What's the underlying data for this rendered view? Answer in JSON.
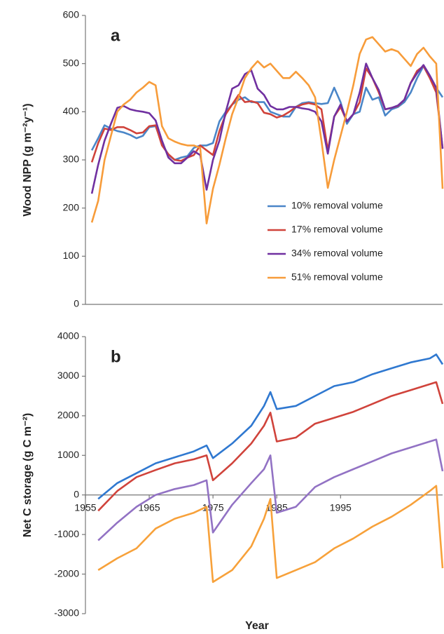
{
  "chart_data": [
    {
      "type": "line",
      "panel_label": "a",
      "ylabel": "Wood NPP (g m⁻²y⁻¹)",
      "xlim": [
        1955,
        2011
      ],
      "ylim": [
        0,
        600
      ],
      "yticks": [
        0,
        100,
        200,
        300,
        400,
        500,
        600
      ],
      "legend": "lower right",
      "x": [
        1956,
        1957,
        1958,
        1959,
        1960,
        1961,
        1962,
        1963,
        1964,
        1965,
        1966,
        1967,
        1968,
        1969,
        1970,
        1971,
        1972,
        1973,
        1974,
        1975,
        1976,
        1977,
        1978,
        1979,
        1980,
        1981,
        1982,
        1983,
        1984,
        1985,
        1986,
        1987,
        1988,
        1989,
        1990,
        1991,
        1992,
        1993,
        1994,
        1995,
        1996,
        1997,
        1998,
        1999,
        2000,
        2001,
        2002,
        2003,
        2004,
        2005,
        2006,
        2007,
        2008,
        2009,
        2010,
        2011
      ],
      "series": [
        {
          "name": "10% removal volume",
          "color": "#4a86c8",
          "values": [
            320,
            345,
            372,
            365,
            360,
            357,
            352,
            345,
            350,
            368,
            370,
            335,
            310,
            300,
            305,
            308,
            325,
            330,
            330,
            335,
            380,
            400,
            415,
            425,
            430,
            420,
            420,
            420,
            400,
            395,
            390,
            390,
            410,
            418,
            420,
            418,
            416,
            418,
            450,
            420,
            375,
            395,
            400,
            450,
            425,
            430,
            392,
            405,
            410,
            420,
            440,
            470,
            495,
            470,
            450,
            430
          ]
        },
        {
          "name": "17% removal volume",
          "color": "#d0433b",
          "values": [
            295,
            335,
            365,
            362,
            368,
            368,
            362,
            355,
            357,
            370,
            372,
            330,
            312,
            300,
            298,
            305,
            310,
            330,
            320,
            310,
            360,
            395,
            415,
            435,
            420,
            422,
            418,
            398,
            395,
            388,
            392,
            400,
            410,
            415,
            418,
            415,
            405,
            320,
            390,
            410,
            380,
            395,
            420,
            490,
            470,
            440,
            405,
            408,
            412,
            425,
            460,
            485,
            495,
            470,
            440,
            325
          ]
        },
        {
          "name": "34% removal volume",
          "color": "#7030a0",
          "values": [
            230,
            290,
            340,
            375,
            408,
            412,
            405,
            402,
            400,
            397,
            382,
            340,
            305,
            293,
            293,
            305,
            318,
            310,
            238,
            300,
            340,
            400,
            448,
            455,
            478,
            486,
            448,
            435,
            412,
            405,
            405,
            410,
            410,
            407,
            405,
            400,
            380,
            313,
            390,
            415,
            380,
            395,
            440,
            500,
            470,
            445,
            405,
            408,
            413,
            425,
            460,
            480,
            497,
            475,
            450,
            323
          ]
        },
        {
          "name": "51% removal volume",
          "color": "#f79c3a",
          "values": [
            170,
            215,
            300,
            350,
            400,
            415,
            425,
            440,
            450,
            462,
            455,
            370,
            345,
            338,
            333,
            330,
            330,
            325,
            168,
            240,
            290,
            345,
            395,
            430,
            470,
            490,
            505,
            492,
            500,
            485,
            470,
            470,
            483,
            470,
            455,
            430,
            340,
            242,
            300,
            350,
            400,
            455,
            520,
            550,
            555,
            540,
            525,
            530,
            525,
            510,
            495,
            520,
            533,
            515,
            500,
            240
          ]
        }
      ]
    },
    {
      "type": "line",
      "panel_label": "b",
      "ylabel": "Net C  storage  (g C m⁻²)",
      "xlabel": "Year",
      "xlim": [
        1955,
        2011
      ],
      "xticks": [
        1955,
        1965,
        1975,
        1985,
        1995
      ],
      "ylim": [
        -3000,
        4000
      ],
      "yticks": [
        -3000,
        -2000,
        -1000,
        0,
        1000,
        2000,
        3000,
        4000
      ],
      "x": [
        1957,
        1960,
        1963,
        1966,
        1969,
        1972,
        1974,
        1975,
        1978,
        1981,
        1983,
        1984,
        1985,
        1988,
        1991,
        1994,
        1997,
        2000,
        2003,
        2006,
        2009,
        2010,
        2011
      ],
      "series": [
        {
          "color": "#2f78d0",
          "values": [
            -100,
            300,
            550,
            800,
            950,
            1100,
            1250,
            930,
            1300,
            1750,
            2250,
            2600,
            2170,
            2250,
            2500,
            2750,
            2850,
            3050,
            3200,
            3350,
            3450,
            3550,
            3300
          ]
        },
        {
          "color": "#d0433b",
          "values": [
            -400,
            100,
            450,
            630,
            800,
            900,
            1000,
            370,
            800,
            1300,
            1750,
            2080,
            1350,
            1450,
            1800,
            1950,
            2100,
            2300,
            2500,
            2650,
            2800,
            2850,
            2300
          ]
        },
        {
          "color": "#9272c4",
          "values": [
            -1150,
            -700,
            -300,
            0,
            150,
            250,
            370,
            -950,
            -250,
            300,
            650,
            1000,
            -450,
            -300,
            200,
            450,
            650,
            850,
            1050,
            1200,
            1350,
            1400,
            600
          ]
        },
        {
          "color": "#f7a13a",
          "values": [
            -1900,
            -1600,
            -1350,
            -850,
            -600,
            -450,
            -300,
            -2200,
            -1900,
            -1300,
            -600,
            -100,
            -2100,
            -1900,
            -1700,
            -1350,
            -1100,
            -800,
            -550,
            -250,
            100,
            230,
            -1850
          ]
        }
      ]
    }
  ]
}
